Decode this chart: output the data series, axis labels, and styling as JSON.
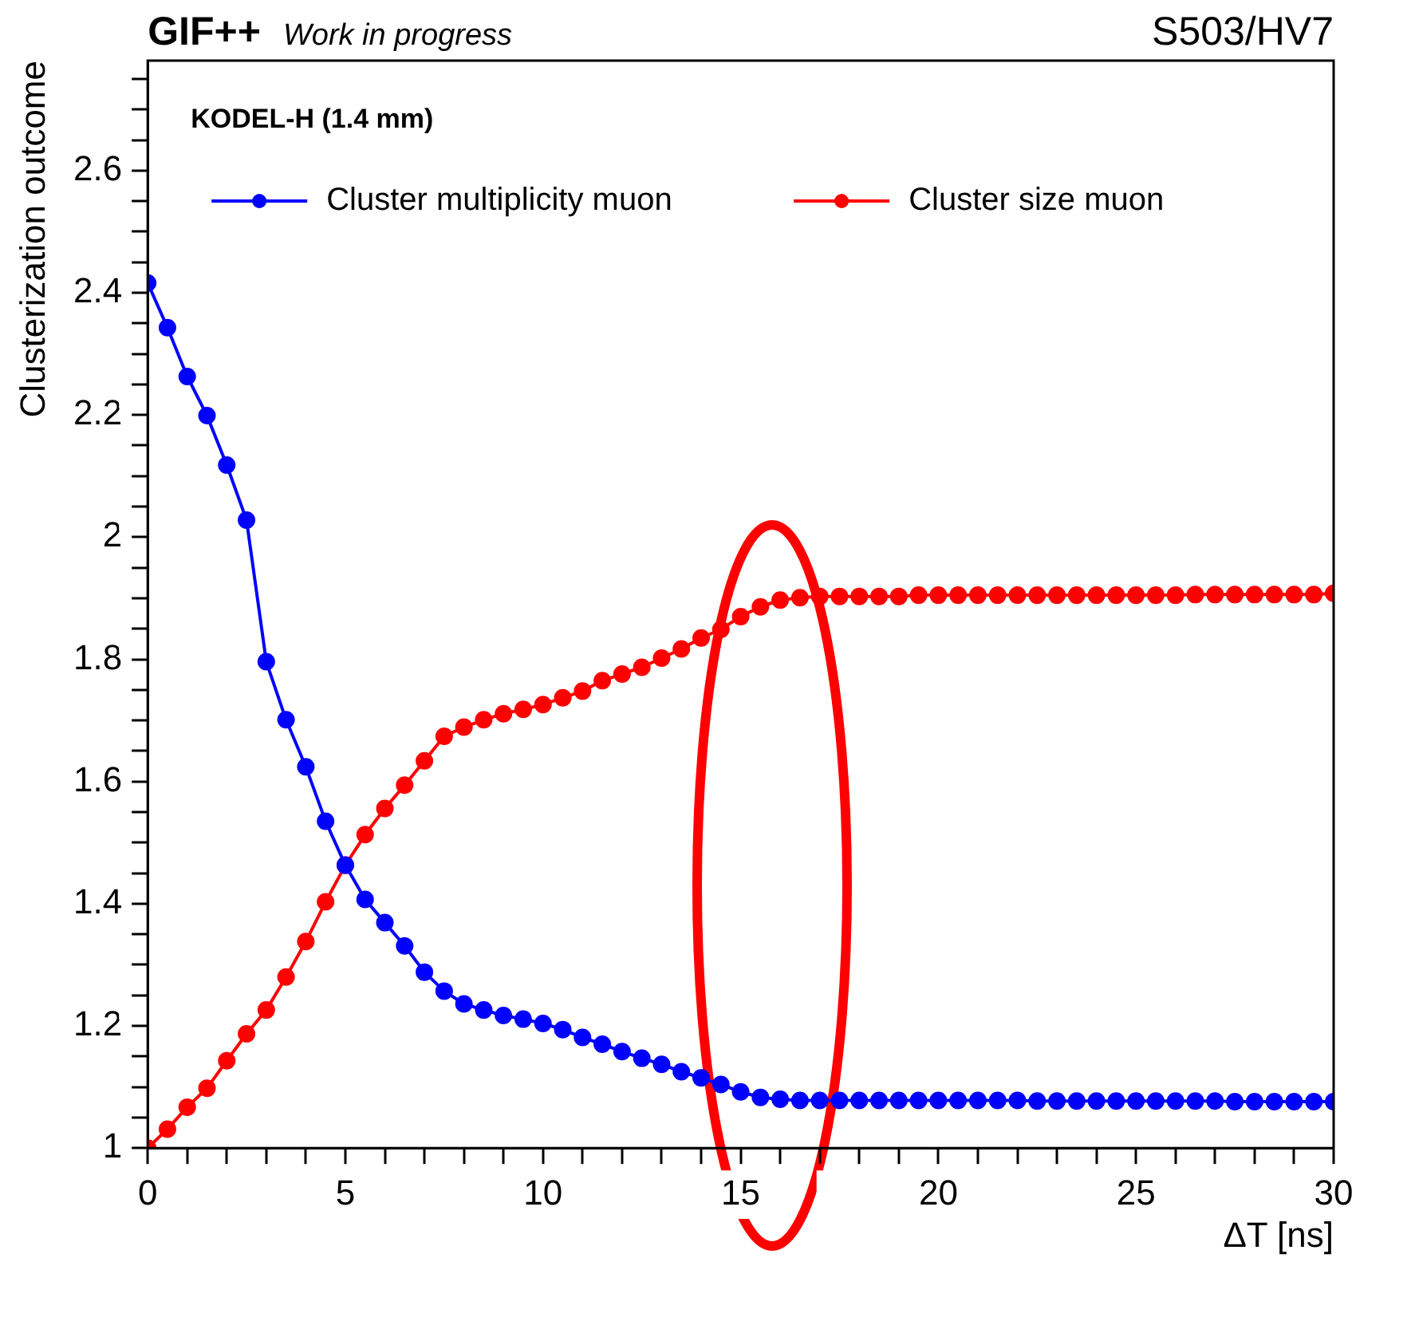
{
  "chart_data": {
    "type": "line",
    "title": "GIF++",
    "subtitle": "Work in progress",
    "xlabel": "ΔT [ns]",
    "ylabel": "Clusterization outcome",
    "annotations": [
      "S503/HV7",
      "KODEL-H (1.4 mm)"
    ],
    "x": [
      0,
      0.5,
      1,
      1.5,
      2,
      2.5,
      3,
      3.5,
      4,
      4.5,
      5,
      5.5,
      6,
      6.5,
      7,
      7.5,
      8,
      8.5,
      9,
      9.5,
      10,
      10.5,
      11,
      11.5,
      12,
      12.5,
      13,
      13.5,
      14,
      14.5,
      15,
      15.5,
      16,
      16.5,
      17,
      17.5,
      18,
      18.5,
      19,
      19.5,
      20,
      20.5,
      21,
      21.5,
      22,
      22.5,
      23,
      23.5,
      24,
      24.5,
      25,
      25.5,
      26,
      26.5,
      27,
      27.5,
      28,
      28.5,
      29,
      29.5,
      30
    ],
    "series": [
      {
        "name": "Cluster multiplicity muon",
        "color": "#0000ff",
        "values": [
          2.416,
          2.343,
          2.263,
          2.199,
          2.118,
          2.028,
          1.796,
          1.701,
          1.624,
          1.535,
          1.463,
          1.407,
          1.369,
          1.331,
          1.288,
          1.257,
          1.236,
          1.226,
          1.217,
          1.211,
          1.204,
          1.194,
          1.181,
          1.17,
          1.158,
          1.147,
          1.137,
          1.125,
          1.115,
          1.104,
          1.092,
          1.083,
          1.08,
          1.078,
          1.078,
          1.078,
          1.078,
          1.078,
          1.078,
          1.078,
          1.078,
          1.078,
          1.078,
          1.078,
          1.078,
          1.077,
          1.077,
          1.077,
          1.077,
          1.077,
          1.077,
          1.077,
          1.077,
          1.077,
          1.077,
          1.076,
          1.076,
          1.076,
          1.076,
          1.076,
          1.076
        ]
      },
      {
        "name": "Cluster size muon",
        "color": "#ff0000",
        "values": [
          1.0,
          1.031,
          1.067,
          1.098,
          1.143,
          1.187,
          1.226,
          1.28,
          1.338,
          1.403,
          1.463,
          1.513,
          1.556,
          1.594,
          1.634,
          1.674,
          1.689,
          1.701,
          1.711,
          1.718,
          1.726,
          1.737,
          1.748,
          1.765,
          1.776,
          1.787,
          1.802,
          1.817,
          1.835,
          1.849,
          1.87,
          1.886,
          1.897,
          1.901,
          1.903,
          1.903,
          1.903,
          1.903,
          1.903,
          1.905,
          1.905,
          1.905,
          1.905,
          1.905,
          1.905,
          1.905,
          1.905,
          1.905,
          1.905,
          1.905,
          1.905,
          1.905,
          1.905,
          1.906,
          1.906,
          1.906,
          1.906,
          1.906,
          1.906,
          1.906,
          1.908
        ]
      }
    ],
    "xlim": [
      0,
      30
    ],
    "xticks": [
      0,
      {
        "value": 1,
        "label": null
      },
      {
        "value": 2,
        "label": null
      },
      {
        "value": 3,
        "label": null
      },
      {
        "value": 4,
        "label": null
      },
      5,
      {
        "value": 6,
        "label": null
      },
      {
        "value": 7,
        "label": null
      },
      {
        "value": 8,
        "label": null
      },
      {
        "value": 9,
        "label": null
      },
      10,
      {
        "value": 11,
        "label": null
      },
      {
        "value": 12,
        "label": null
      },
      {
        "value": 13,
        "label": null
      },
      {
        "value": 14,
        "label": null
      },
      15,
      {
        "value": 16,
        "label": null
      },
      {
        "value": 17,
        "label": null
      },
      {
        "value": 18,
        "label": null
      },
      {
        "value": 19,
        "label": null
      },
      20,
      {
        "value": 21,
        "label": null
      },
      {
        "value": 22,
        "label": null
      },
      {
        "value": 23,
        "label": null
      },
      {
        "value": 24,
        "label": null
      },
      25,
      {
        "value": 26,
        "label": null
      },
      {
        "value": 27,
        "label": null
      },
      {
        "value": 28,
        "label": null
      },
      {
        "value": 29,
        "label": null
      },
      30
    ],
    "ylim": [
      1,
      2.78
    ],
    "yticks": [
      1,
      {
        "value": 1.05,
        "label": null
      },
      {
        "value": 1.1,
        "label": null
      },
      {
        "value": 1.15,
        "label": null
      },
      1.2,
      {
        "value": 1.25,
        "label": null
      },
      {
        "value": 1.3,
        "label": null
      },
      {
        "value": 1.35,
        "label": null
      },
      1.4,
      {
        "value": 1.45,
        "label": null
      },
      {
        "value": 1.5,
        "label": null
      },
      {
        "value": 1.55,
        "label": null
      },
      1.6,
      {
        "value": 1.65,
        "label": null
      },
      {
        "value": 1.7,
        "label": null
      },
      {
        "value": 1.75,
        "label": null
      },
      1.8,
      {
        "value": 1.85,
        "label": null
      },
      {
        "value": 1.9,
        "label": null
      },
      {
        "value": 1.95,
        "label": null
      },
      2,
      {
        "value": 2.05,
        "label": null
      },
      {
        "value": 2.1,
        "label": null
      },
      {
        "value": 2.15,
        "label": null
      },
      2.2,
      {
        "value": 2.25,
        "label": null
      },
      {
        "value": 2.3,
        "label": null
      },
      {
        "value": 2.35,
        "label": null
      },
      2.4,
      {
        "value": 2.45,
        "label": null
      },
      {
        "value": 2.5,
        "label": null
      },
      {
        "value": 2.55,
        "label": null
      },
      2.6,
      {
        "value": 2.65,
        "label": null
      },
      {
        "value": 2.7,
        "label": null
      },
      {
        "value": 2.75,
        "label": null
      }
    ],
    "grid": false,
    "legend": "top",
    "marker": "circle",
    "line_style": "solid"
  }
}
